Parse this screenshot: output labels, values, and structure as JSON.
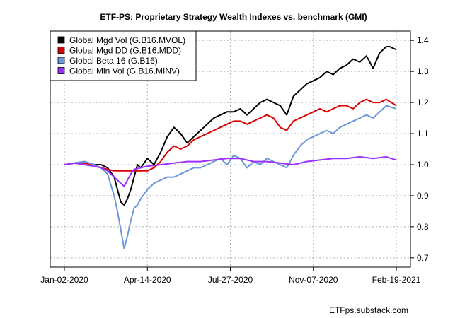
{
  "chart_data": {
    "type": "line",
    "title": "ETF-PS: Proprietary Strategy Wealth Indexes vs. benchmark (GMI)",
    "xlabel": "",
    "ylabel": "",
    "credit": "ETFps.substack.com",
    "x_ticks": [
      "Jan-02-2020",
      "Apr-14-2020",
      "Jul-27-2020",
      "Nov-07-2020",
      "Feb-19-2021"
    ],
    "ylim": [
      0.67,
      1.43
    ],
    "y_ticks": [
      0.7,
      0.8,
      0.9,
      1.0,
      1.1,
      1.2,
      1.3,
      1.4
    ],
    "grid": true,
    "legend_position": "top-left",
    "series": [
      {
        "name": "Global Mgd Vol (G.B16.MVOL)",
        "color": "#000000",
        "x": [
          0,
          0.03,
          0.06,
          0.09,
          0.11,
          0.13,
          0.15,
          0.16,
          0.17,
          0.18,
          0.19,
          0.2,
          0.21,
          0.22,
          0.23,
          0.25,
          0.27,
          0.29,
          0.31,
          0.33,
          0.35,
          0.37,
          0.39,
          0.41,
          0.43,
          0.45,
          0.47,
          0.49,
          0.51,
          0.53,
          0.55,
          0.57,
          0.59,
          0.61,
          0.63,
          0.65,
          0.67,
          0.69,
          0.71,
          0.73,
          0.75,
          0.77,
          0.79,
          0.81,
          0.83,
          0.85,
          0.87,
          0.89,
          0.91,
          0.93,
          0.95,
          0.97,
          0.98,
          1.0
        ],
        "values": [
          1.0,
          1.005,
          1.01,
          1.0,
          1.0,
          0.99,
          0.96,
          0.92,
          0.88,
          0.87,
          0.89,
          0.92,
          0.96,
          1.0,
          0.99,
          1.02,
          1.0,
          1.04,
          1.09,
          1.12,
          1.1,
          1.07,
          1.09,
          1.11,
          1.13,
          1.15,
          1.16,
          1.17,
          1.17,
          1.18,
          1.16,
          1.18,
          1.2,
          1.21,
          1.2,
          1.19,
          1.16,
          1.22,
          1.24,
          1.26,
          1.27,
          1.28,
          1.3,
          1.29,
          1.31,
          1.32,
          1.34,
          1.33,
          1.35,
          1.31,
          1.36,
          1.38,
          1.38,
          1.37
        ]
      },
      {
        "name": "Global Mgd DD (G.B16.MDD)",
        "color": "#dd0000",
        "x": [
          0,
          0.03,
          0.06,
          0.09,
          0.11,
          0.13,
          0.15,
          0.2,
          0.25,
          0.27,
          0.29,
          0.31,
          0.33,
          0.35,
          0.37,
          0.39,
          0.41,
          0.43,
          0.45,
          0.47,
          0.49,
          0.51,
          0.53,
          0.55,
          0.57,
          0.59,
          0.61,
          0.63,
          0.65,
          0.67,
          0.69,
          0.71,
          0.73,
          0.75,
          0.77,
          0.79,
          0.81,
          0.83,
          0.85,
          0.87,
          0.89,
          0.91,
          0.93,
          0.95,
          0.97,
          1.0
        ],
        "values": [
          1.0,
          1.005,
          1.005,
          1.0,
          0.99,
          0.985,
          0.98,
          0.98,
          0.98,
          0.99,
          1.01,
          1.04,
          1.06,
          1.05,
          1.06,
          1.08,
          1.09,
          1.1,
          1.11,
          1.12,
          1.13,
          1.14,
          1.14,
          1.13,
          1.14,
          1.15,
          1.16,
          1.15,
          1.12,
          1.11,
          1.14,
          1.15,
          1.16,
          1.17,
          1.18,
          1.17,
          1.18,
          1.19,
          1.19,
          1.18,
          1.2,
          1.21,
          1.2,
          1.2,
          1.21,
          1.19
        ]
      },
      {
        "name": "Global Beta 16 (G.B16)",
        "color": "#6d97dd",
        "x": [
          0,
          0.03,
          0.06,
          0.09,
          0.11,
          0.13,
          0.15,
          0.16,
          0.17,
          0.18,
          0.19,
          0.2,
          0.21,
          0.22,
          0.23,
          0.25,
          0.27,
          0.29,
          0.31,
          0.33,
          0.35,
          0.37,
          0.39,
          0.41,
          0.43,
          0.45,
          0.47,
          0.49,
          0.51,
          0.53,
          0.55,
          0.57,
          0.59,
          0.61,
          0.63,
          0.65,
          0.67,
          0.69,
          0.71,
          0.73,
          0.75,
          0.77,
          0.79,
          0.81,
          0.83,
          0.85,
          0.87,
          0.89,
          0.91,
          0.93,
          0.95,
          0.97,
          1.0
        ],
        "values": [
          1.0,
          1.005,
          1.01,
          1.0,
          0.99,
          0.97,
          0.9,
          0.85,
          0.79,
          0.73,
          0.77,
          0.82,
          0.86,
          0.87,
          0.89,
          0.92,
          0.94,
          0.95,
          0.96,
          0.96,
          0.97,
          0.98,
          0.99,
          0.99,
          1.0,
          1.01,
          1.02,
          1.0,
          1.03,
          1.02,
          0.99,
          1.01,
          1.0,
          1.02,
          1.01,
          1.0,
          0.99,
          1.03,
          1.06,
          1.08,
          1.09,
          1.1,
          1.11,
          1.1,
          1.12,
          1.13,
          1.14,
          1.15,
          1.16,
          1.15,
          1.17,
          1.19,
          1.18
        ]
      },
      {
        "name": "Global Min Vol (G.B16.MINV)",
        "color": "#9b30ff",
        "x": [
          0,
          0.03,
          0.06,
          0.09,
          0.11,
          0.13,
          0.15,
          0.17,
          0.18,
          0.19,
          0.2,
          0.21,
          0.23,
          0.25,
          0.29,
          0.33,
          0.37,
          0.41,
          0.45,
          0.49,
          0.53,
          0.57,
          0.61,
          0.65,
          0.69,
          0.73,
          0.77,
          0.81,
          0.85,
          0.89,
          0.93,
          0.97,
          1.0
        ],
        "values": [
          1.0,
          1.005,
          1.0,
          0.995,
          0.99,
          0.98,
          0.96,
          0.94,
          0.93,
          0.95,
          0.97,
          0.985,
          0.99,
          0.995,
          1.0,
          1.005,
          1.01,
          1.01,
          1.015,
          1.02,
          1.02,
          1.01,
          1.01,
          1.005,
          1.0,
          1.01,
          1.015,
          1.02,
          1.02,
          1.025,
          1.02,
          1.025,
          1.015
        ]
      }
    ]
  }
}
